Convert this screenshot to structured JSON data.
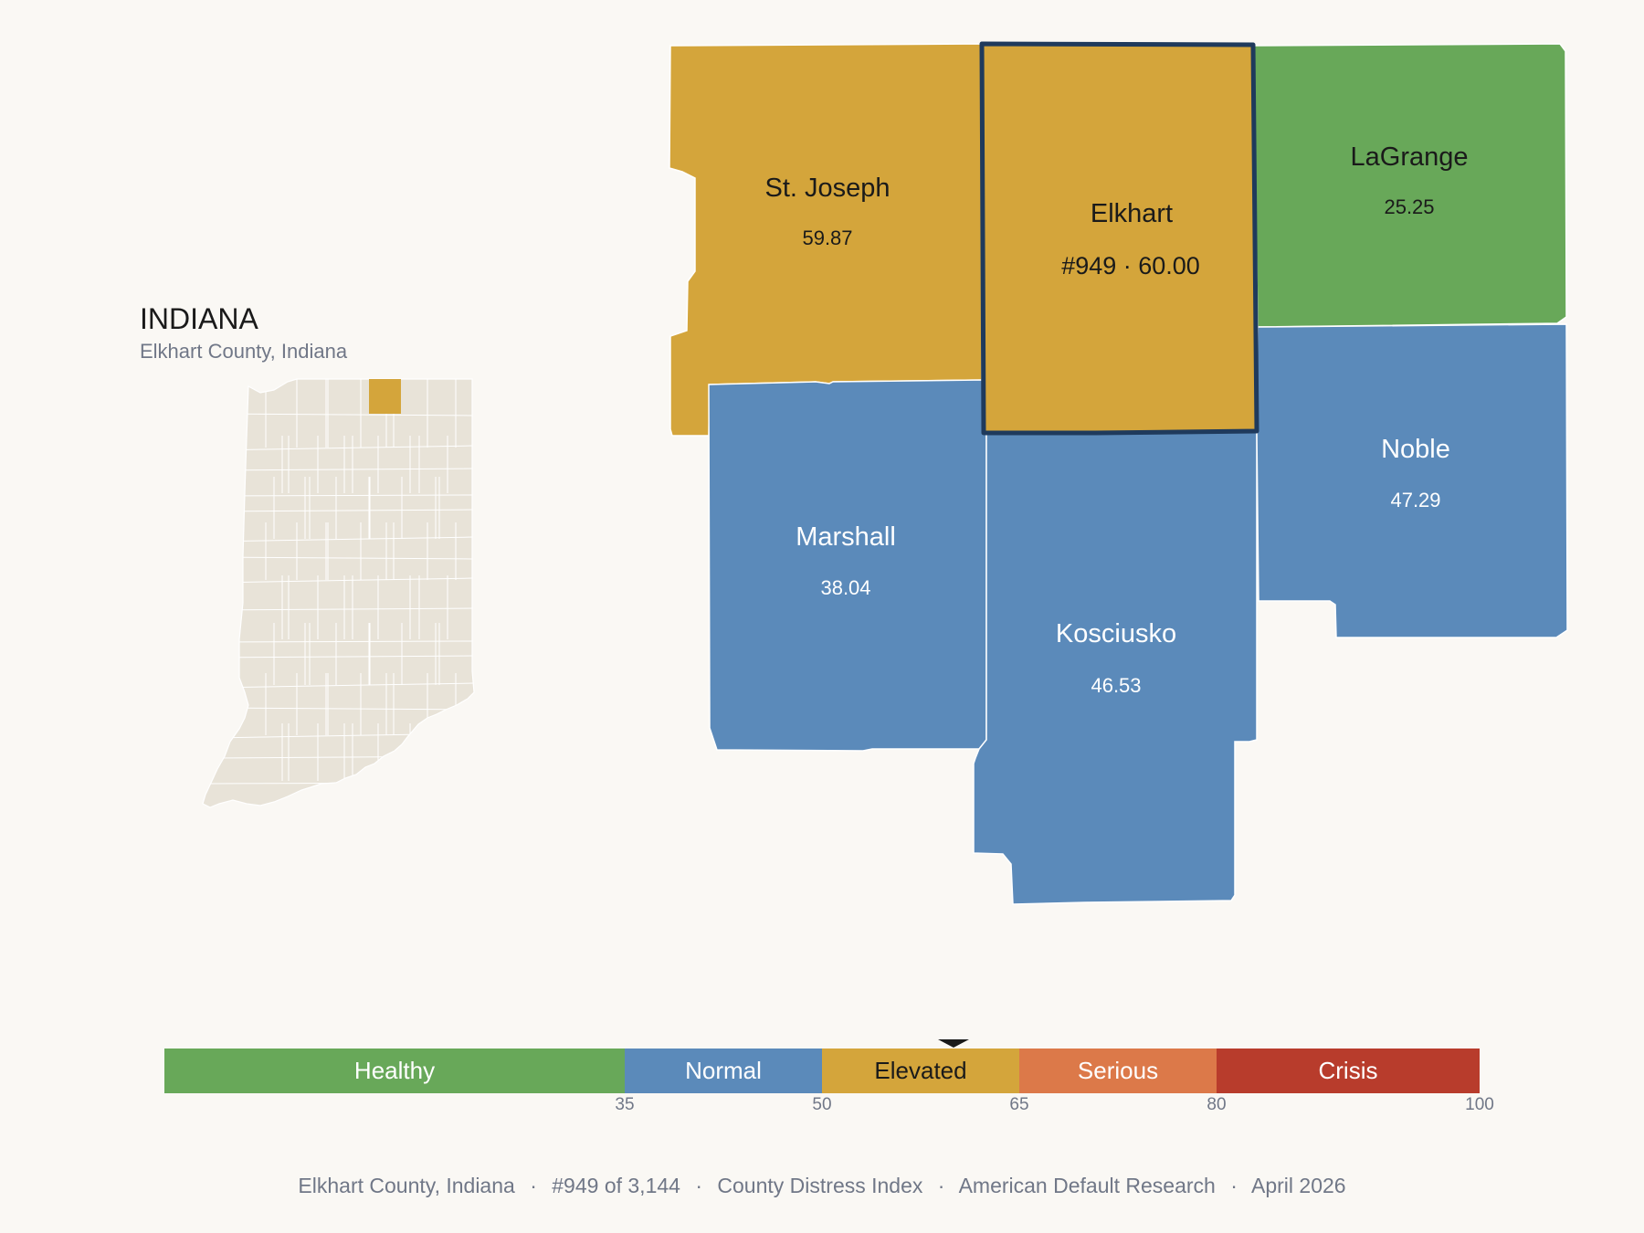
{
  "inset": {
    "title": "INDIANA",
    "subtitle": "Elkhart County, Indiana",
    "land_color": "#e8e3d8",
    "highlight_color": "#d4a53b"
  },
  "counties": [
    {
      "id": "st-joseph",
      "name": "St. Joseph",
      "value_label": "59.87",
      "value": 59.87,
      "color": "#d4a53b",
      "text_color": "#1a1a1a"
    },
    {
      "id": "elkhart",
      "name": "Elkhart",
      "value_label": "#949 · 60.00",
      "value": 60.0,
      "color": "#d4a53b",
      "text_color": "#1a1a1a",
      "selected": true,
      "outline_color": "#1f3a5c"
    },
    {
      "id": "lagrange",
      "name": "LaGrange",
      "value_label": "25.25",
      "value": 25.25,
      "color": "#68a859",
      "text_color": "#1a1a1a"
    },
    {
      "id": "marshall",
      "name": "Marshall",
      "value_label": "38.04",
      "value": 38.04,
      "color": "#5b8aba",
      "text_color": "#ffffff"
    },
    {
      "id": "kosciusko",
      "name": "Kosciusko",
      "value_label": "46.53",
      "value": 46.53,
      "color": "#5b8aba",
      "text_color": "#ffffff"
    },
    {
      "id": "noble",
      "name": "Noble",
      "value_label": "47.29",
      "value": 47.29,
      "color": "#5b8aba",
      "text_color": "#ffffff"
    }
  ],
  "legend": {
    "min": 0,
    "max": 100,
    "marker_value": 60.0,
    "bands": [
      {
        "label": "Healthy",
        "from": 0,
        "to": 35,
        "color": "#68a859",
        "text_color": "#ffffff"
      },
      {
        "label": "Normal",
        "from": 35,
        "to": 50,
        "color": "#5b8aba",
        "text_color": "#ffffff"
      },
      {
        "label": "Elevated",
        "from": 50,
        "to": 65,
        "color": "#d4a53b",
        "text_color": "#1a1a1a"
      },
      {
        "label": "Serious",
        "from": 65,
        "to": 80,
        "color": "#dc7949",
        "text_color": "#ffffff"
      },
      {
        "label": "Crisis",
        "from": 80,
        "to": 100,
        "color": "#b83c2c",
        "text_color": "#ffffff"
      }
    ],
    "ticks": [
      "35",
      "50",
      "65",
      "80",
      "100"
    ]
  },
  "footer": {
    "county": "Elkhart County, Indiana",
    "rank": "#949 of 3,144",
    "index_name": "County Distress Index",
    "publisher": "American Default Research",
    "date": "April 2026",
    "separator": "·"
  }
}
